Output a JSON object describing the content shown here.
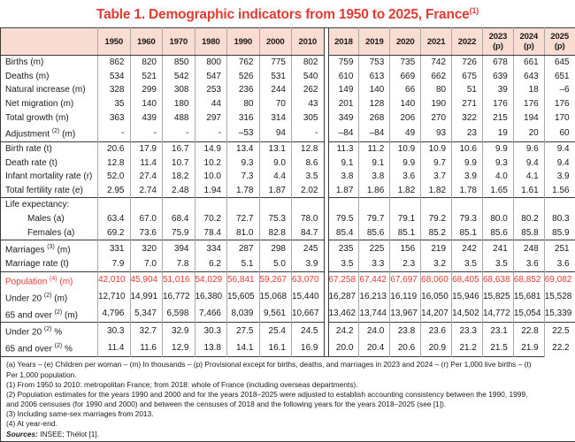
{
  "title": {
    "text": "Table 1. Demographic indicators from 1950 to 2025, France",
    "sup": "(1)"
  },
  "colors": {
    "accent_red": "#e23b33",
    "header_bg": "#f9dcd2",
    "border_dark": "#3a3a3a",
    "border_light": "#a9a9a9"
  },
  "table": {
    "label_header": "",
    "years_left": [
      "1950",
      "1960",
      "1970",
      "1980",
      "1990",
      "2000",
      "2010"
    ],
    "years_right": [
      "2018",
      "2019",
      "2020",
      "2021",
      "2022",
      "2023 (p)",
      "2024 (p)",
      "2025 (p)"
    ],
    "rows": [
      {
        "label": "Births (m)",
        "values": [
          "862",
          "820",
          "850",
          "800",
          "762",
          "775",
          "802",
          "759",
          "753",
          "735",
          "742",
          "726",
          "678",
          "661",
          "645"
        ]
      },
      {
        "label": "Deaths (m)",
        "values": [
          "534",
          "521",
          "542",
          "547",
          "526",
          "531",
          "540",
          "610",
          "613",
          "669",
          "662",
          "675",
          "639",
          "643",
          "651"
        ]
      },
      {
        "label": "Natural increase (m)",
        "values": [
          "328",
          "299",
          "308",
          "253",
          "236",
          "244",
          "262",
          "149",
          "140",
          "66",
          "80",
          "51",
          "39",
          "18",
          "–6"
        ]
      },
      {
        "label": "Net migration (m)",
        "values": [
          "35",
          "140",
          "180",
          "44",
          "80",
          "70",
          "43",
          "201",
          "128",
          "140",
          "190",
          "271",
          "176",
          "176",
          "176"
        ]
      },
      {
        "label": "Total growth (m)",
        "values": [
          "363",
          "439",
          "488",
          "297",
          "316",
          "314",
          "305",
          "349",
          "268",
          "206",
          "270",
          "322",
          "215",
          "194",
          "170"
        ]
      },
      {
        "label": "Adjustment ",
        "sup": "(2)",
        "label2": " (m)",
        "values": [
          "-",
          "-",
          "-",
          "-",
          "–53",
          "94",
          "-",
          "–84",
          "–84",
          "49",
          "93",
          "23",
          "19",
          "20",
          "60"
        ]
      },
      {
        "label": "Birth rate (t)",
        "sep": true,
        "values": [
          "20.6",
          "17.9",
          "16.7",
          "14.9",
          "13.4",
          "13.1",
          "12.8",
          "11.3",
          "11.2",
          "10.9",
          "10.9",
          "10.6",
          "9.9",
          "9.6",
          "9.4"
        ]
      },
      {
        "label": "Death rate (t)",
        "values": [
          "12.8",
          "11.4",
          "10.7",
          "10.2",
          "9.3",
          "9.0",
          "8.6",
          "9.1",
          "9.1",
          "9.9",
          "9.7",
          "9.9",
          "9.3",
          "9.4",
          "9.4"
        ]
      },
      {
        "label": "Infant mortality rate (r)",
        "values": [
          "52.0",
          "27.4",
          "18.2",
          "10.0",
          "7.3",
          "4.4",
          "3.5",
          "3.8",
          "3.8",
          "3.6",
          "3.7",
          "3.9",
          "4.0",
          "4.1",
          "3.9"
        ]
      },
      {
        "label": "Total fertility rate (e)",
        "values": [
          "2.95",
          "2.74",
          "2.48",
          "1.94",
          "1.78",
          "1.87",
          "2.02",
          "1.87",
          "1.86",
          "1.82",
          "1.82",
          "1.78",
          "1.65",
          "1.61",
          "1.56"
        ]
      },
      {
        "label": "Life expectancy:",
        "sep": true,
        "values": [
          "",
          "",
          "",
          "",
          "",
          "",
          "",
          "",
          "",
          "",
          "",
          "",
          "",
          "",
          ""
        ]
      },
      {
        "label": "Males (a)",
        "indent": true,
        "values": [
          "63.4",
          "67.0",
          "68.4",
          "70.2",
          "72.7",
          "75.3",
          "78.0",
          "79.5",
          "79.7",
          "79.1",
          "79.2",
          "79.3",
          "80.0",
          "80.2",
          "80.3"
        ]
      },
      {
        "label": "Females (a)",
        "indent": true,
        "values": [
          "69.2",
          "73.6",
          "75.9",
          "78.4",
          "81.0",
          "82.8",
          "84.7",
          "85.4",
          "85.6",
          "85.1",
          "85.2",
          "85.1",
          "85.6",
          "85.8",
          "85.9"
        ]
      },
      {
        "label": "Marriages ",
        "sup": "(3)",
        "label2": " (m)",
        "sep": true,
        "values": [
          "331",
          "320",
          "394",
          "334",
          "287",
          "298",
          "245",
          "235",
          "225",
          "156",
          "219",
          "242",
          "241",
          "248",
          "251"
        ]
      },
      {
        "label": "Marriage rate (t)",
        "values": [
          "7.9",
          "7.0",
          "7.8",
          "6.2",
          "5.1",
          "5.0",
          "3.9",
          "3.5",
          "3.3",
          "2.3",
          "3.2",
          "3.5",
          "3.5",
          "3.6",
          "3.6"
        ]
      },
      {
        "label": "Population ",
        "sup": "(4)",
        "label2": " (m)",
        "sep": true,
        "red": true,
        "values": [
          "42,010",
          "45,904",
          "51,016",
          "54,029",
          "56,841",
          "59,267",
          "63,070",
          "67,258",
          "67,442",
          "67,697",
          "68,060",
          "68,405",
          "68,638",
          "68,852",
          "69,082"
        ]
      },
      {
        "label": "Under 20 ",
        "sup": "(2)",
        "label2": " (m)",
        "values": [
          "12,710",
          "14,991",
          "16,772",
          "16,380",
          "15,605",
          "15,068",
          "15,440",
          "16,287",
          "16,213",
          "16,119",
          "16,050",
          "15,946",
          "15,825",
          "15,681",
          "15,528"
        ]
      },
      {
        "label": "65 and over ",
        "sup": "(2)",
        "label2": " (m)",
        "values": [
          "4,796",
          "5,347",
          "6,598",
          "7,466",
          "8,039",
          "9,561",
          "10,667",
          "13,462",
          "13,744",
          "13,967",
          "14,207",
          "14,502",
          "14,772",
          "15,054",
          "15,339"
        ]
      },
      {
        "label": "Under 20 ",
        "sup": "(2)",
        "label2": " %",
        "sep": true,
        "values": [
          "30.3",
          "32.7",
          "32.9",
          "30.3",
          "27.5",
          "25.4",
          "24.5",
          "24.2",
          "24.0",
          "23.8",
          "23.6",
          "23.3",
          "23.1",
          "22.8",
          "22.5"
        ]
      },
      {
        "label": "65 and over ",
        "sup": "(2)",
        "label2": " %",
        "values": [
          "11.4",
          "11.6",
          "12.9",
          "13.8",
          "14.1",
          "16.1",
          "16.9",
          "20.0",
          "20.4",
          "20.6",
          "20.9",
          "21.2",
          "21.5",
          "21.9",
          "22.2"
        ]
      }
    ]
  },
  "footnotes": {
    "lines": [
      "(a) Years – (e) Children per woman – (m) In thousands – (p) Provisional except for births, deaths, and marriages in 2023 and 2024 – (r) Per 1,000 live births – (t) Per 1,000 population.",
      "(1) From 1950 to 2010: metropolitan France; from 2018: whole of France (including overseas departments).",
      "(2) Population estimates for the years 1990 and 2000 and for the years 2018–2025 were adjusted to establish accounting consistency between the 1990, 1999, and 2006 censuses (for 1990 and 2000) and between the censuses of 2018 and the following years for the years 2018–2025 (see [1]).",
      "(3) Including same-sex marriages from 2013.",
      "(4) At year-end."
    ],
    "sources_label": "Sources:",
    "sources_text": " INSEE; Thélot [1]."
  }
}
